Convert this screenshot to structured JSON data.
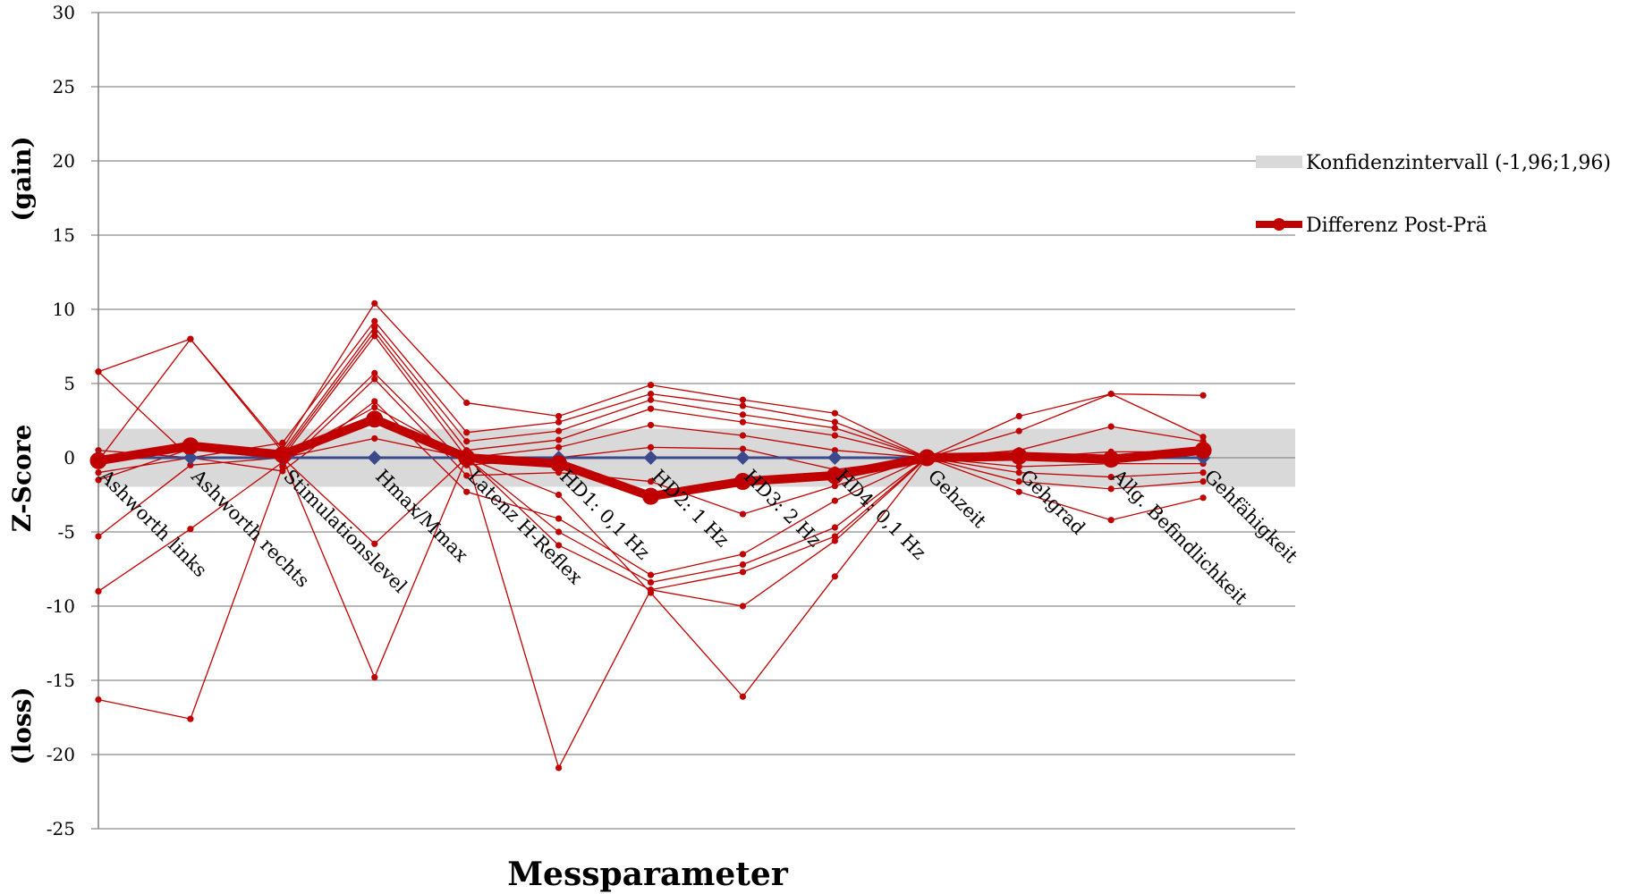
{
  "chart_data": {
    "type": "line",
    "xlabel": "Messparameter",
    "ylabel_parts": [
      "(gain)",
      "Z-Score",
      "(loss)"
    ],
    "ylim": [
      -25,
      30
    ],
    "yticks": [
      30,
      25,
      20,
      15,
      10,
      5,
      0,
      -5,
      -10,
      -15,
      -20,
      -25
    ],
    "grid": true,
    "legend_position": "right",
    "categories": [
      "Ashworth links",
      "Ashworth rechts",
      "Stimulationslevel",
      "Hmax/Mmax",
      "Latenz H-Reflex",
      "HD1: 0,1 Hz",
      "HD2: 1 Hz",
      "HD3: 2 Hz",
      "HD4: 0,1 Hz",
      "Gehzeit",
      "Gehgrad",
      "Allg. Befindlichkeit",
      "Gehfähigkeit"
    ],
    "confidence_band": {
      "name": "Konfidenzintervall (-1,96;1,96)",
      "low": -1.96,
      "high": 1.96,
      "color": "#d9d9d9"
    },
    "mean_series": {
      "name": "Differenz Post-Prä",
      "color": "#c00000",
      "values": [
        -0.2,
        0.8,
        0.2,
        2.6,
        0.0,
        -0.4,
        -2.6,
        -1.6,
        -1.2,
        0.0,
        0.1,
        -0.1,
        0.5
      ]
    },
    "baseline_series": {
      "color": "#3b4a8c",
      "values": [
        0,
        0,
        0,
        0,
        0,
        0,
        0,
        0,
        0,
        0,
        0,
        0,
        0
      ]
    },
    "individual_series_color": "#c00000",
    "individual_series": [
      [
        5.8,
        8.0,
        0.6,
        10.4,
        3.7,
        2.8,
        4.9,
        3.9,
        3.0,
        0.0,
        2.8,
        4.3,
        4.2
      ],
      [
        5.8,
        0.0,
        1.0,
        9.2,
        1.7,
        2.4,
        4.3,
        3.5,
        2.4,
        0.0,
        1.8,
        4.3,
        1.4
      ],
      [
        -0.2,
        8.0,
        0.4,
        8.8,
        1.1,
        1.8,
        3.9,
        2.9,
        2.0,
        0.0,
        0.5,
        2.1,
        1.1
      ],
      [
        -1.5,
        0.6,
        0.2,
        8.5,
        0.5,
        1.2,
        3.3,
        2.4,
        1.5,
        0.0,
        0.0,
        0.4,
        0.4
      ],
      [
        -5.3,
        -0.5,
        0.0,
        8.2,
        0.0,
        0.7,
        2.2,
        1.5,
        0.5,
        0.0,
        -0.6,
        -0.4,
        -0.4
      ],
      [
        -9.0,
        -4.8,
        -0.3,
        5.7,
        -0.5,
        0.0,
        0.7,
        0.6,
        -0.8,
        0.0,
        -1.0,
        -1.3,
        -1.0
      ],
      [
        -16.3,
        -17.6,
        -0.6,
        5.3,
        -1.2,
        -1.0,
        -1.6,
        -3.8,
        -1.9,
        0.0,
        -1.6,
        -2.1,
        -1.6
      ],
      [
        -1.0,
        0.0,
        -0.9,
        3.8,
        -2.3,
        -4.1,
        -7.9,
        -6.5,
        -2.9,
        0.0,
        -2.3,
        -4.2,
        -2.7
      ],
      [
        0.5,
        0.0,
        0.0,
        3.4,
        0.0,
        -5.0,
        -8.4,
        -7.2,
        -4.7,
        0.0,
        0.0,
        0.0,
        0.0
      ],
      [
        0.0,
        0.0,
        0.0,
        2.6,
        0.0,
        -5.9,
        -8.9,
        -7.7,
        -5.3,
        0.0,
        0.0,
        0.0,
        0.0
      ],
      [
        0.0,
        0.0,
        0.0,
        1.3,
        0.0,
        -20.9,
        -8.9,
        -10.0,
        -5.6,
        0.0,
        0.0,
        0.0,
        0.0
      ],
      [
        0.0,
        0.0,
        0.0,
        -5.8,
        0.0,
        -2.5,
        -9.1,
        -16.1,
        -8.0,
        0.0,
        0.0,
        0.0,
        0.0
      ],
      [
        0.0,
        0.0,
        0.0,
        -14.8,
        0.0,
        0.0,
        0.0,
        0.0,
        0.0,
        0.0,
        0.0,
        0.0,
        0.0
      ]
    ]
  }
}
